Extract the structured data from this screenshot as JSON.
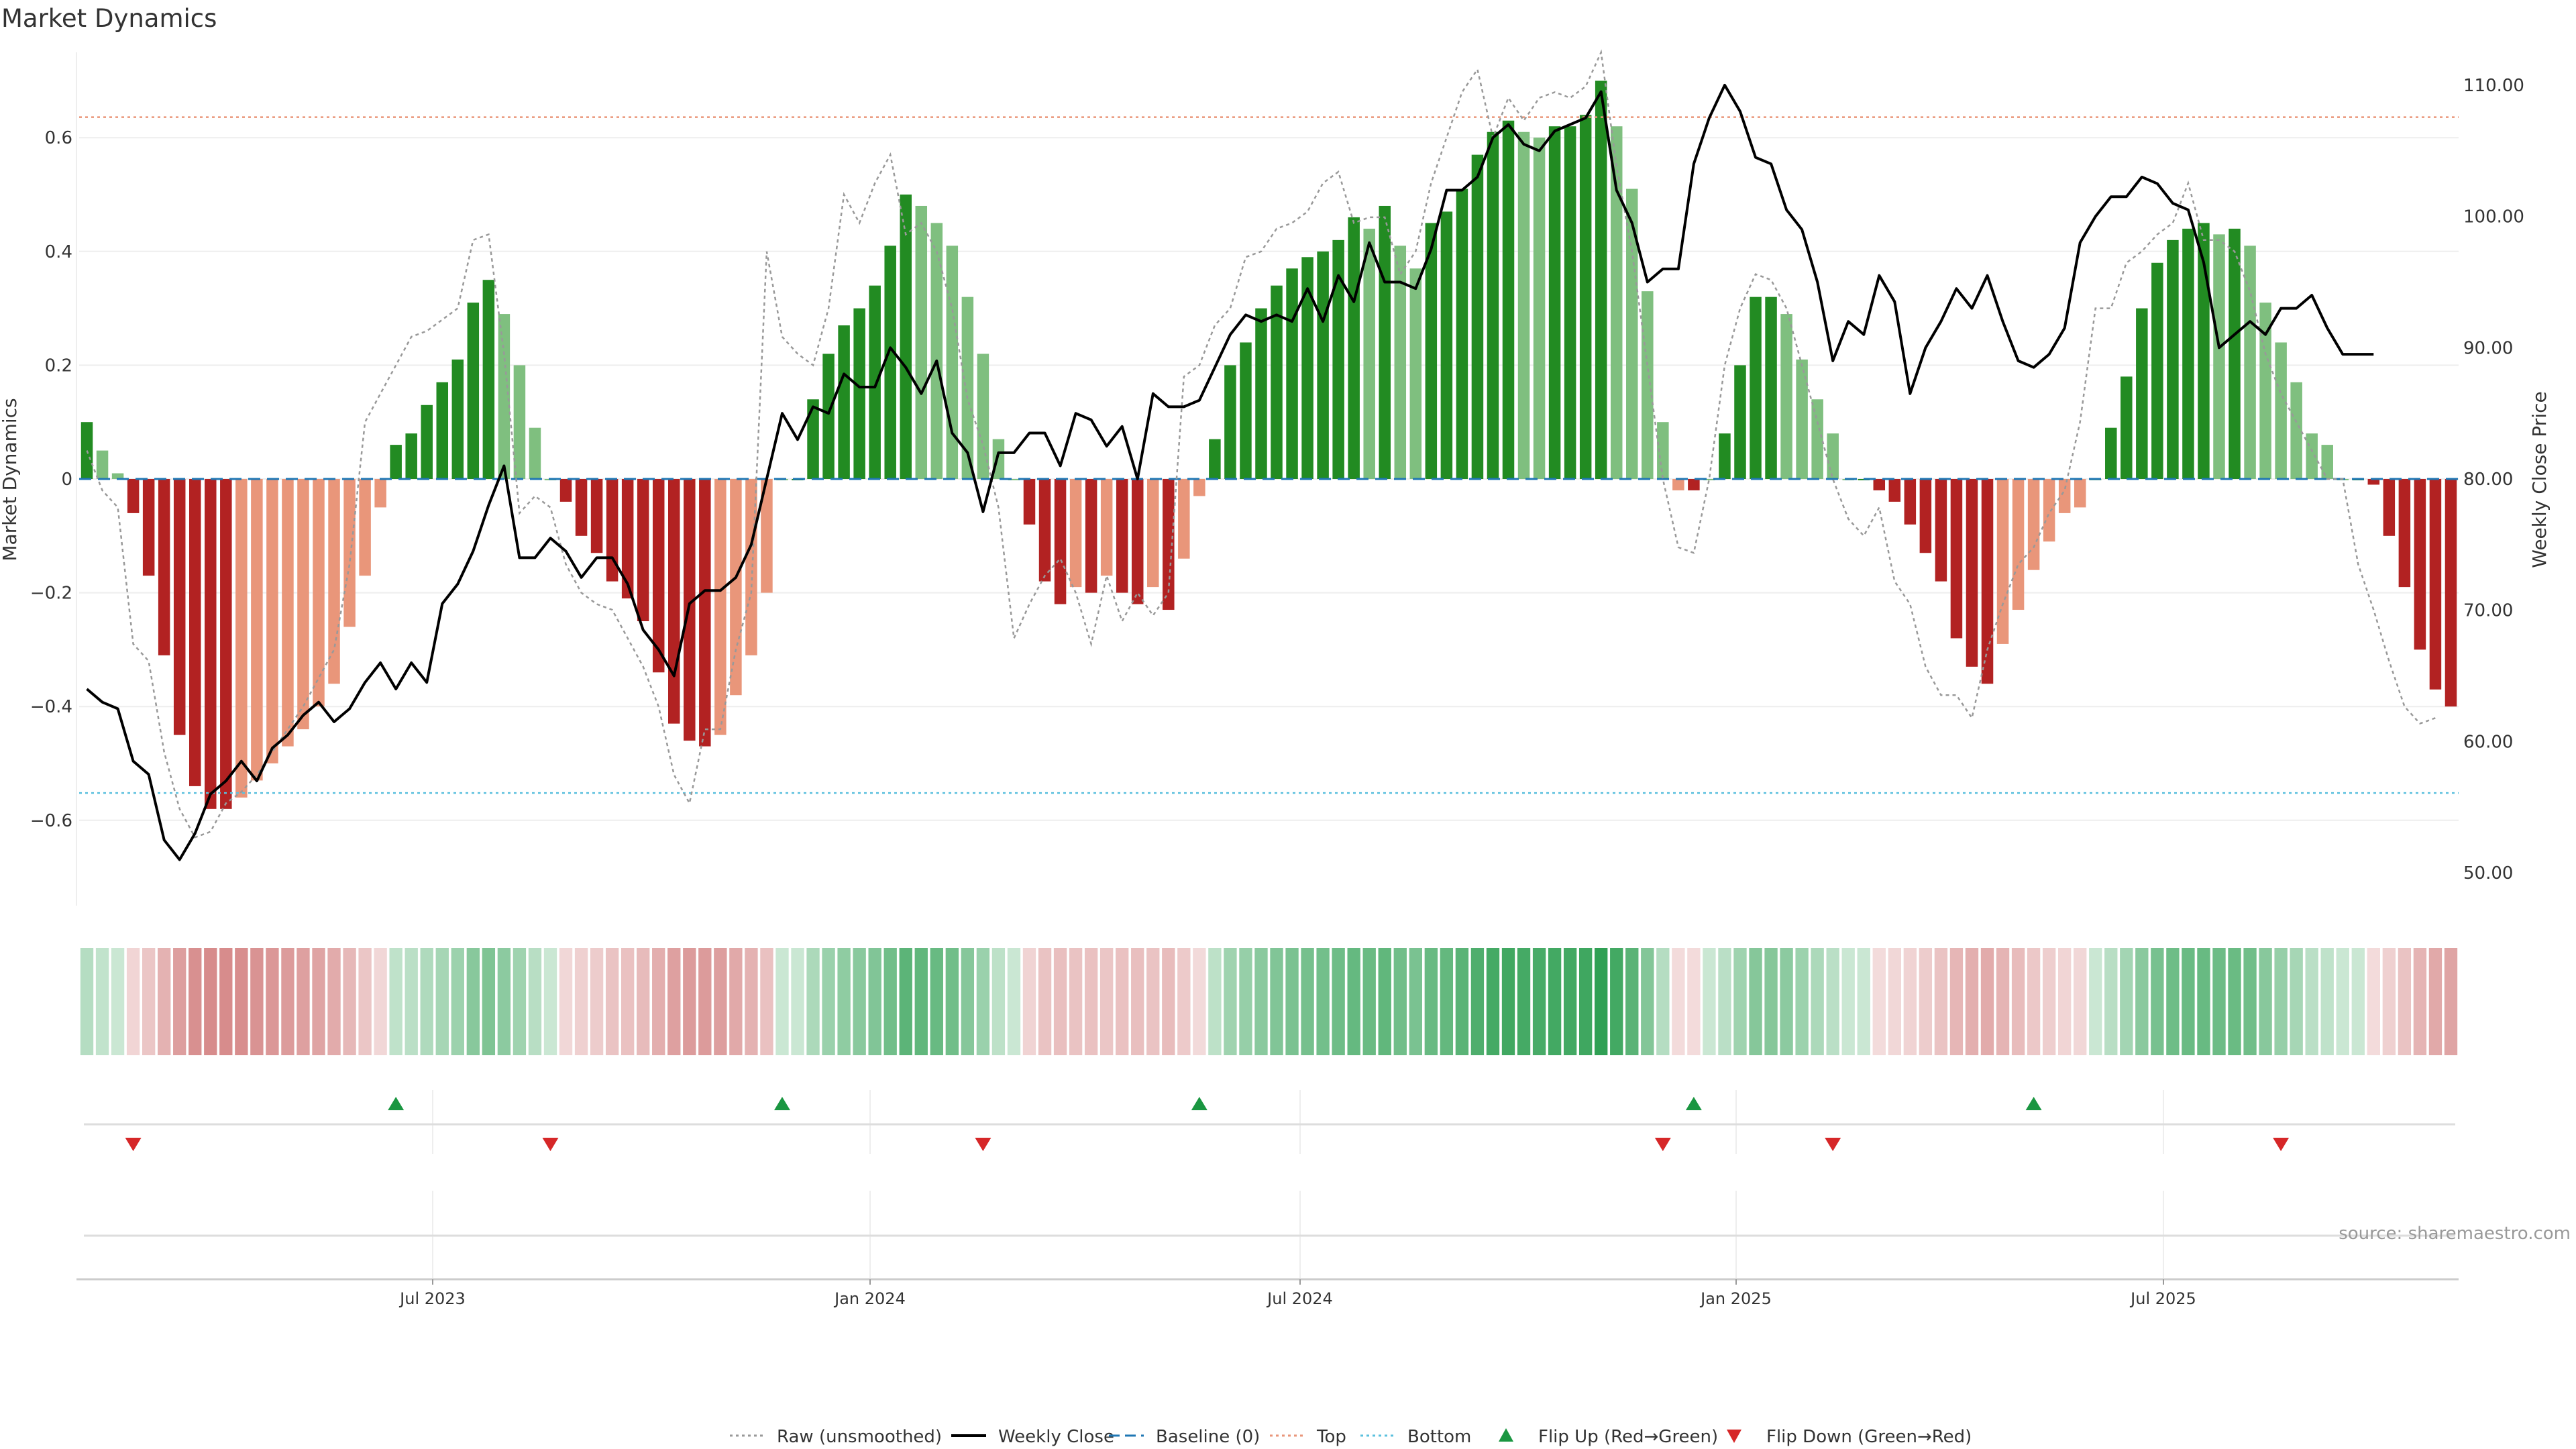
{
  "title": "Market Dynamics",
  "source": "source: sharemaestro.com",
  "colors": {
    "green_strong": "#228b22",
    "green_weak": "#7fbf7f",
    "red_strong": "#b22222",
    "red_weak": "#e9967a",
    "raw": "#999999",
    "close": "#000000",
    "baseline": "#1f77b4",
    "top": "#e9967a",
    "bottom": "#5bc0de",
    "flip_up": "#1a9641",
    "flip_down": "#d62728",
    "grid": "#eeeeee"
  },
  "chart_data": {
    "type": "bar",
    "x_ticks": [
      "Jul 2023",
      "Jan 2024",
      "Jul 2024",
      "Jan 2025",
      "Jul 2025"
    ],
    "y_left": {
      "label": "Market Dynamics",
      "ticks": [
        "0.6",
        "0.4",
        "0.2",
        "0",
        "−0.2",
        "−0.4",
        "−0.6"
      ],
      "ylim": [
        -0.75,
        0.75
      ]
    },
    "y_right": {
      "label": "Weekly Close Price",
      "ticks": [
        "110.00",
        "100.00",
        "90.00",
        "80.00",
        "70.00",
        "60.00",
        "50.00"
      ],
      "ylim": [
        47.5,
        112.5
      ]
    },
    "top_line": 0.636,
    "bottom_line": -0.552,
    "baseline": 0,
    "series": [
      {
        "name": "Market Dynamics",
        "values": [
          0.1,
          0.05,
          0.01,
          -0.06,
          -0.17,
          -0.31,
          -0.45,
          -0.54,
          -0.58,
          -0.58,
          -0.56,
          -0.53,
          -0.5,
          -0.47,
          -0.44,
          -0.4,
          -0.36,
          -0.26,
          -0.17,
          -0.05,
          0.06,
          0.08,
          0.13,
          0.17,
          0.21,
          0.31,
          0.35,
          0.29,
          0.2,
          0.09,
          0.0,
          -0.04,
          -0.1,
          -0.13,
          -0.18,
          -0.21,
          -0.25,
          -0.34,
          -0.43,
          -0.46,
          -0.47,
          -0.45,
          -0.38,
          -0.31,
          -0.2,
          0.0,
          0.0,
          0.14,
          0.22,
          0.27,
          0.3,
          0.34,
          0.41,
          0.5,
          0.48,
          0.45,
          0.41,
          0.32,
          0.22,
          0.07,
          0.0,
          -0.08,
          -0.18,
          -0.22,
          -0.19,
          -0.2,
          -0.17,
          -0.2,
          -0.22,
          -0.19,
          -0.23,
          -0.14,
          -0.03,
          0.07,
          0.2,
          0.24,
          0.3,
          0.34,
          0.37,
          0.39,
          0.4,
          0.42,
          0.46,
          0.44,
          0.48,
          0.41,
          0.37,
          0.45,
          0.47,
          0.51,
          0.57,
          0.61,
          0.63,
          0.61,
          0.6,
          0.62,
          0.62,
          0.64,
          0.7,
          0.62,
          0.51,
          0.33,
          0.1,
          -0.02,
          -0.02,
          0.0,
          0.08,
          0.2,
          0.32,
          0.32,
          0.29,
          0.21,
          0.14,
          0.08,
          0.0,
          0.0,
          -0.02,
          -0.04,
          -0.08,
          -0.13,
          -0.18,
          -0.28,
          -0.33,
          -0.36,
          -0.29,
          -0.23,
          -0.16,
          -0.11,
          -0.06,
          -0.05,
          0.0,
          0.09,
          0.18,
          0.3,
          0.38,
          0.42,
          0.44,
          0.45,
          0.43,
          0.44,
          0.41,
          0.31,
          0.24,
          0.17,
          0.08,
          0.06,
          0.0,
          0.0,
          -0.01,
          -0.1,
          -0.19,
          -0.3,
          -0.37,
          -0.4
        ]
      },
      {
        "name": "Raw (unsmoothed)",
        "values": [
          0.05,
          -0.02,
          -0.05,
          -0.29,
          -0.32,
          -0.48,
          -0.58,
          -0.63,
          -0.62,
          -0.57,
          -0.55,
          -0.52,
          -0.48,
          -0.44,
          -0.4,
          -0.35,
          -0.3,
          -0.15,
          0.1,
          0.15,
          0.2,
          0.25,
          0.26,
          0.28,
          0.3,
          0.42,
          0.43,
          0.22,
          -0.06,
          -0.03,
          -0.05,
          -0.15,
          -0.2,
          -0.22,
          -0.23,
          -0.28,
          -0.33,
          -0.4,
          -0.52,
          -0.57,
          -0.44,
          -0.44,
          -0.3,
          -0.2,
          0.4,
          0.25,
          0.22,
          0.2,
          0.3,
          0.5,
          0.45,
          0.52,
          0.57,
          0.43,
          0.45,
          0.4,
          0.3,
          0.14,
          0.06,
          -0.05,
          -0.28,
          -0.22,
          -0.17,
          -0.14,
          -0.2,
          -0.29,
          -0.17,
          -0.25,
          -0.2,
          -0.24,
          -0.2,
          0.18,
          0.2,
          0.27,
          0.3,
          0.39,
          0.4,
          0.44,
          0.45,
          0.47,
          0.52,
          0.54,
          0.45,
          0.46,
          0.46,
          0.36,
          0.4,
          0.52,
          0.6,
          0.68,
          0.72,
          0.6,
          0.67,
          0.63,
          0.67,
          0.68,
          0.67,
          0.69,
          0.75,
          0.55,
          0.4,
          0.2,
          0.0,
          -0.12,
          -0.13,
          0.0,
          0.2,
          0.3,
          0.36,
          0.35,
          0.3,
          0.2,
          0.1,
          0.0,
          -0.07,
          -0.1,
          -0.05,
          -0.18,
          -0.22,
          -0.33,
          -0.38,
          -0.38,
          -0.42,
          -0.3,
          -0.22,
          -0.15,
          -0.12,
          -0.06,
          -0.02,
          0.1,
          0.3,
          0.3,
          0.38,
          0.4,
          0.43,
          0.45,
          0.52,
          0.42,
          0.42,
          0.4,
          0.33,
          0.22,
          0.15,
          0.1,
          0.05,
          0.0,
          0.0,
          -0.15,
          -0.23,
          -0.32,
          -0.4,
          -0.43,
          -0.42
        ]
      },
      {
        "name": "Weekly Close",
        "axis": "right",
        "values": [
          64.0,
          63.0,
          62.5,
          58.5,
          57.5,
          52.5,
          51.0,
          53.0,
          56.0,
          57.0,
          58.5,
          57.0,
          59.5,
          60.5,
          62.0,
          63.0,
          61.5,
          62.5,
          64.5,
          66.0,
          64.0,
          66.0,
          64.5,
          70.5,
          72.0,
          74.5,
          78.0,
          81.0,
          74.0,
          74.0,
          75.5,
          74.5,
          72.5,
          74.0,
          74.0,
          72.0,
          68.5,
          67.0,
          65.0,
          70.5,
          71.5,
          71.5,
          72.5,
          75.0,
          80.0,
          85.0,
          83.0,
          85.5,
          85.0,
          88.0,
          87.0,
          87.0,
          90.0,
          88.5,
          86.5,
          89.0,
          83.5,
          82.0,
          77.5,
          82.0,
          82.0,
          83.5,
          83.5,
          81.0,
          85.0,
          84.5,
          82.5,
          84.0,
          80.0,
          86.5,
          85.5,
          85.5,
          86.0,
          88.5,
          91.0,
          92.5,
          92.0,
          92.5,
          92.0,
          94.5,
          92.0,
          95.5,
          93.5,
          98.0,
          95.0,
          95.0,
          94.5,
          97.5,
          102.0,
          102.0,
          103.0,
          106.0,
          107.0,
          105.5,
          105.0,
          106.5,
          107.0,
          107.5,
          109.5,
          102.0,
          99.5,
          95.0,
          96.0,
          96.0,
          104.0,
          107.5,
          110.0,
          108.0,
          104.5,
          104.0,
          100.5,
          99.0,
          95.0,
          89.0,
          92.0,
          91.0,
          95.5,
          93.5,
          86.5,
          90.0,
          92.0,
          94.5,
          93.0,
          95.5,
          92.0,
          89.0,
          88.5,
          89.5,
          91.5,
          98.0,
          100.0,
          101.5,
          101.5,
          103.0,
          102.5,
          101.0,
          100.5,
          96.5,
          90.0,
          91.0,
          92.0,
          91.0,
          93.0,
          93.0,
          94.0,
          91.5,
          89.5,
          89.5,
          89.5
        ]
      }
    ],
    "flips_up_at": [
      20,
      45,
      72,
      104,
      126
    ],
    "flips_down_at": [
      3,
      30,
      58,
      102,
      113,
      142
    ],
    "legend": [
      {
        "label": "Raw (unsmoothed)",
        "style": "dotted",
        "color": "#999999"
      },
      {
        "label": "Weekly Close",
        "style": "solid",
        "color": "#000000"
      },
      {
        "label": "Baseline (0)",
        "style": "dashed",
        "color": "#1f77b4"
      },
      {
        "label": "Top",
        "style": "dotted",
        "color": "#e9967a"
      },
      {
        "label": "Bottom",
        "style": "dotted",
        "color": "#5bc0de"
      },
      {
        "label": "Flip Up (Red→Green)",
        "style": "marker-up",
        "color": "#1a9641"
      },
      {
        "label": "Flip Down (Green→Red)",
        "style": "marker-down",
        "color": "#d62728"
      }
    ],
    "legend_position": "bottom-center",
    "grid": true
  }
}
